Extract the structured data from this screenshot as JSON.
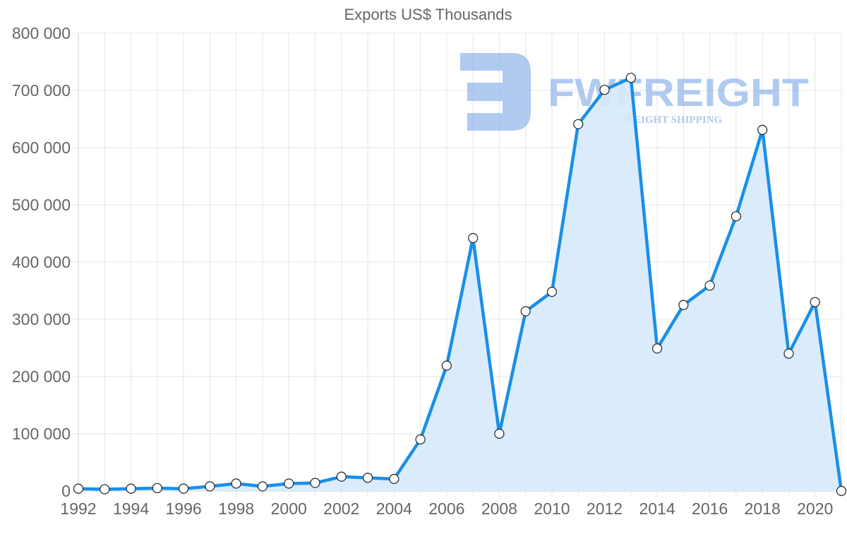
{
  "chart_data": {
    "type": "area",
    "title": "Exports US$ Thousands",
    "xlabel": "",
    "ylabel": "",
    "x": [
      1992,
      1993,
      1994,
      1995,
      1996,
      1997,
      1998,
      1999,
      2000,
      2001,
      2002,
      2003,
      2004,
      2005,
      2006,
      2007,
      2008,
      2009,
      2010,
      2011,
      2012,
      2013,
      2014,
      2015,
      2016,
      2017,
      2018,
      2019,
      2020,
      2021
    ],
    "series": [
      {
        "name": "Exports US$ Thousands",
        "values": [
          4000,
          3000,
          4000,
          5000,
          4000,
          8000,
          13000,
          8000,
          13000,
          14000,
          25000,
          23000,
          21000,
          90000,
          219000,
          442000,
          100000,
          314000,
          348000,
          641000,
          701000,
          722000,
          249000,
          325000,
          359000,
          480000,
          631000,
          240000,
          330000,
          0
        ]
      }
    ],
    "ylim": [
      0,
      800000
    ],
    "y_ticks": [
      0,
      100000,
      200000,
      300000,
      400000,
      500000,
      600000,
      700000,
      800000
    ],
    "y_tick_labels": [
      "0",
      "100 000",
      "200 000",
      "300 000",
      "400 000",
      "500 000",
      "600 000",
      "700 000",
      "800 000"
    ],
    "x_tick_labels": [
      "1992",
      "1994",
      "1996",
      "1998",
      "2000",
      "2002",
      "2004",
      "2006",
      "2008",
      "2010",
      "2012",
      "2014",
      "2016",
      "2018",
      "2020"
    ],
    "grid": true,
    "legend": "none",
    "colors": {
      "line": "#1a8fe8",
      "fill": "#d6eafb",
      "marker_fill": "#ffffff",
      "marker_stroke": "#222222"
    }
  },
  "watermark": {
    "brand": "FWFREIGHT",
    "tagline": "FREIGHT SHIPPING",
    "color": "#8fb4ea"
  }
}
